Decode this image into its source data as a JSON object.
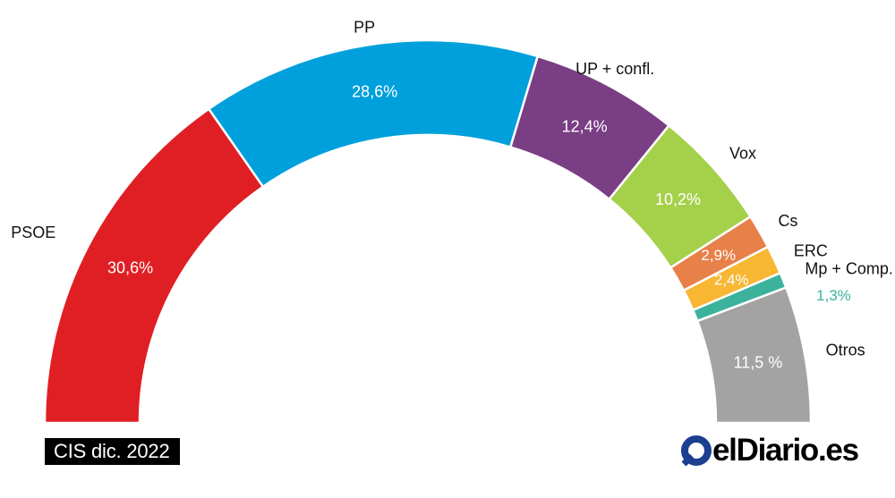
{
  "chart_data": {
    "type": "pie",
    "subtype": "semicircle-parliament",
    "series": [
      {
        "label": "PSOE",
        "value": 30.6,
        "value_label": "30,6%",
        "color": "#e01f25"
      },
      {
        "label": "PP",
        "value": 28.6,
        "value_label": "28,6%",
        "color": "#00a0dc"
      },
      {
        "label": "UP + confl.",
        "value": 12.4,
        "value_label": "12,4%",
        "color": "#7a3e85"
      },
      {
        "label": "Vox",
        "value": 10.2,
        "value_label": "10,2%",
        "color": "#a5d04a"
      },
      {
        "label": "Cs",
        "value": 2.9,
        "value_label": "2,9%",
        "color": "#e8804a"
      },
      {
        "label": "ERC",
        "value": 2.4,
        "value_label": "2,4%",
        "color": "#f7b733"
      },
      {
        "label": "Mp + Comp.",
        "value": 1.3,
        "value_label": "1,3%",
        "color": "#3bb39c"
      },
      {
        "label": "Otros",
        "value": 11.5,
        "value_label": "11,5 %",
        "color": "#a3a3a3"
      }
    ]
  },
  "source": "CIS dic. 2022",
  "brand": {
    "logo_text": "elDiario.es",
    "logo_icon": "eldiario-o-icon",
    "color": "#000000",
    "accent": "#1b3f91"
  }
}
